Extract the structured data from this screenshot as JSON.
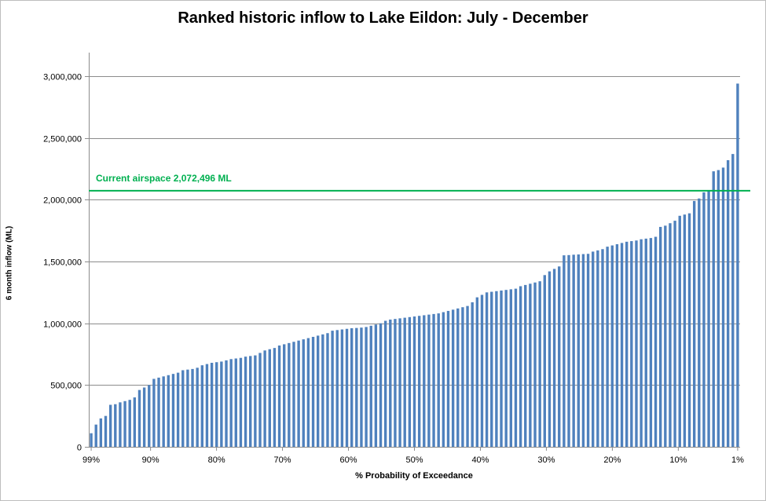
{
  "chart_data": {
    "type": "bar",
    "title": "Ranked historic inflow to Lake Eildon: July - December",
    "xlabel": "% Probability of Exceedance",
    "ylabel": "6 month inflow (ML)",
    "ylim": [
      0,
      3000000
    ],
    "yticks": [
      "0",
      "500,000",
      "1,000,000",
      "1,500,000",
      "2,000,000",
      "2,500,000",
      "3,000,000"
    ],
    "yticks_values": [
      0,
      500000,
      1000000,
      1500000,
      2000000,
      2500000,
      3000000
    ],
    "xticks": [
      "99%",
      "90%",
      "80%",
      "70%",
      "60%",
      "50%",
      "40%",
      "30%",
      "20%",
      "10%",
      "1%"
    ],
    "xticks_values": [
      99,
      90,
      80,
      70,
      60,
      50,
      40,
      30,
      20,
      10,
      1
    ],
    "grid": "horizontal",
    "bar_color": "#4f81bd",
    "reference_line": {
      "label": "Current airspace 2,072,496 ML",
      "value": 2072496,
      "color": "#00b050"
    },
    "values": [
      110000,
      180000,
      230000,
      250000,
      340000,
      345000,
      360000,
      370000,
      380000,
      400000,
      460000,
      480000,
      500000,
      550000,
      560000,
      570000,
      580000,
      590000,
      600000,
      620000,
      625000,
      630000,
      640000,
      660000,
      670000,
      680000,
      685000,
      690000,
      700000,
      710000,
      715000,
      720000,
      730000,
      735000,
      740000,
      760000,
      780000,
      790000,
      800000,
      820000,
      830000,
      840000,
      850000,
      860000,
      870000,
      880000,
      890000,
      900000,
      910000,
      920000,
      940000,
      945000,
      950000,
      955000,
      960000,
      962000,
      965000,
      970000,
      980000,
      990000,
      1000000,
      1020000,
      1030000,
      1035000,
      1040000,
      1045000,
      1050000,
      1055000,
      1060000,
      1065000,
      1070000,
      1075000,
      1080000,
      1090000,
      1100000,
      1110000,
      1120000,
      1130000,
      1140000,
      1170000,
      1210000,
      1230000,
      1250000,
      1255000,
      1260000,
      1265000,
      1270000,
      1275000,
      1280000,
      1300000,
      1310000,
      1320000,
      1330000,
      1340000,
      1390000,
      1420000,
      1440000,
      1460000,
      1550000,
      1552000,
      1555000,
      1557000,
      1560000,
      1562000,
      1580000,
      1590000,
      1600000,
      1620000,
      1630000,
      1640000,
      1650000,
      1660000,
      1665000,
      1670000,
      1680000,
      1685000,
      1690000,
      1700000,
      1780000,
      1790000,
      1810000,
      1830000,
      1870000,
      1880000,
      1890000,
      1990000,
      2010000,
      2060000,
      2070000,
      2230000,
      2240000,
      2260000,
      2320000,
      2370000,
      2940000
    ]
  }
}
